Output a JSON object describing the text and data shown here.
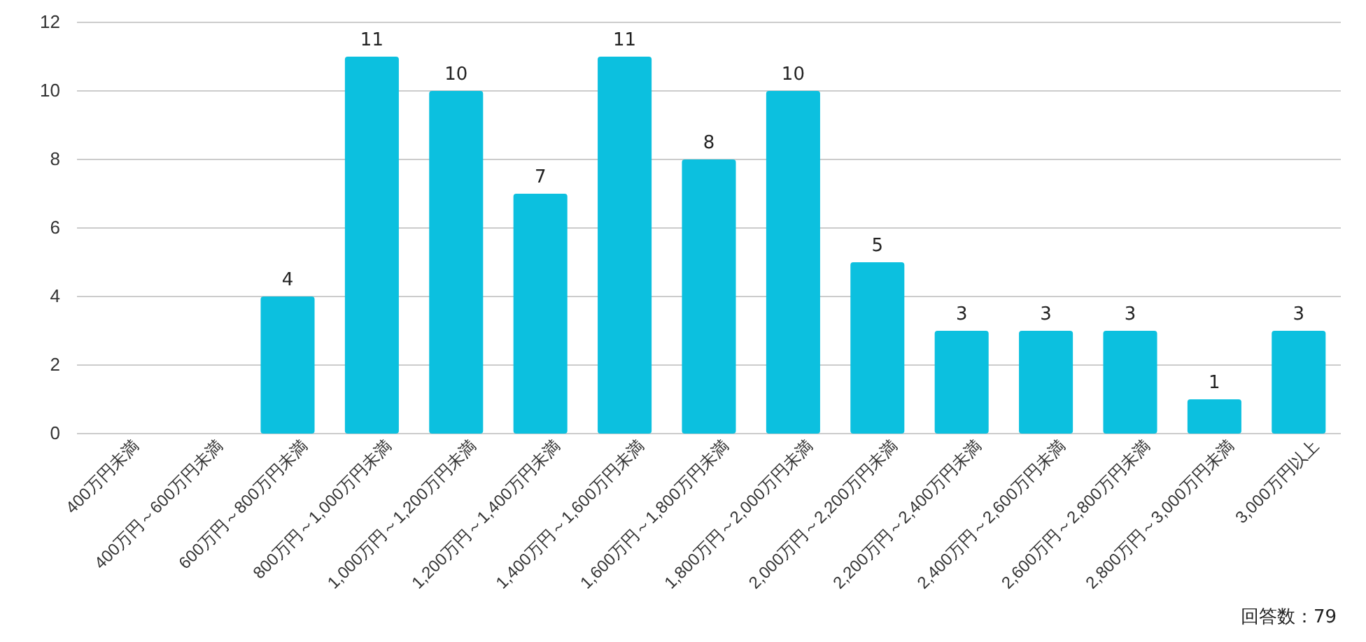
{
  "chart_data": {
    "type": "bar",
    "categories": [
      "400万円未満",
      "400万円～600万円未満",
      "600万円～800万円未満",
      "800万円～1,000万円未満",
      "1,000万円～1,200万円未満",
      "1,200万円～1,400万円未満",
      "1,400万円～1,600万円未満",
      "1,600万円～1,800万円未満",
      "1,800万円～2,000万円未満",
      "2,000万円～2,200万円未満",
      "2,200万円～2,400万円未満",
      "2,400万円～2,600万円未満",
      "2,600万円～2,800万円未満",
      "2,800万円～3,000万円未満",
      "3,000万円以上"
    ],
    "values": [
      0,
      0,
      4,
      11,
      10,
      7,
      11,
      8,
      10,
      5,
      3,
      3,
      3,
      1,
      3
    ],
    "value_labels": [
      null,
      null,
      "4",
      "11",
      "10",
      "7",
      "11",
      "8",
      "10",
      "5",
      "3",
      "3",
      "3",
      "1",
      "3"
    ],
    "color": "#0cc0df",
    "ylim": [
      0,
      12
    ],
    "yticks": [
      0,
      2,
      4,
      6,
      8,
      10,
      12
    ],
    "grid": "y",
    "annotations": [
      "回答数：79"
    ]
  }
}
